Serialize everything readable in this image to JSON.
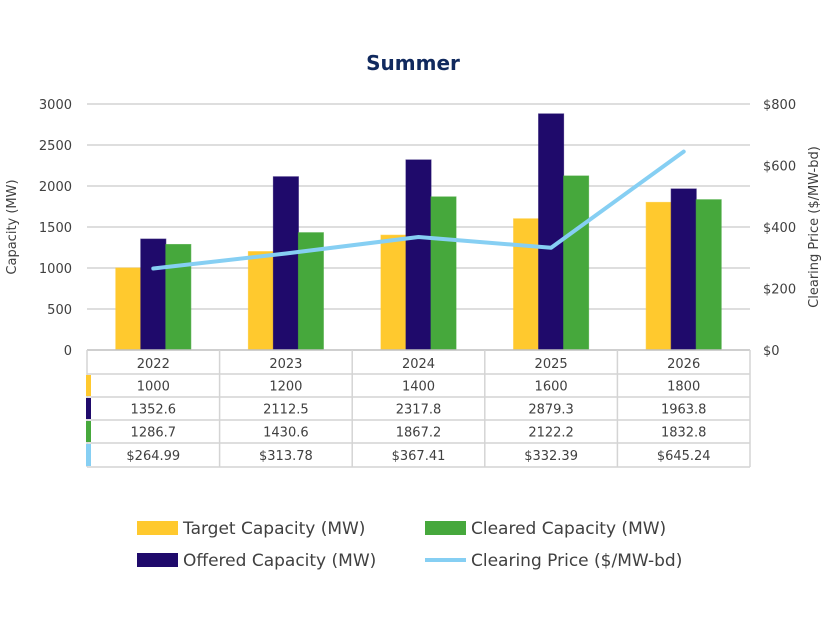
{
  "chart_data": {
    "type": "bar",
    "title": "Summer",
    "categories": [
      "2022",
      "2023",
      "2024",
      "2025",
      "2026"
    ],
    "ylabel": "Capacity (MW)",
    "y2label": "Clearing Price ($/MW-bd)",
    "ylim": [
      0,
      3000
    ],
    "y2lim": [
      0,
      800
    ],
    "yticks": [
      "0",
      "500",
      "1000",
      "1500",
      "2000",
      "2500",
      "3000"
    ],
    "y2ticks": [
      "$0",
      "$200",
      "$400",
      "$600",
      "$800"
    ],
    "grid": true,
    "legend_placement": "bottom",
    "series": [
      {
        "name": "Target Capacity (MW)",
        "kind": "bar",
        "axis": "left",
        "color": "#ffc92e",
        "values": [
          1000,
          1200,
          1400,
          1600,
          1800
        ],
        "labels": [
          "1000",
          "1200",
          "1400",
          "1600",
          "1800"
        ]
      },
      {
        "name": "Offered Capacity (MW)",
        "kind": "bar",
        "axis": "left",
        "color": "#1f0a6b",
        "values": [
          1352.6,
          2112.5,
          2317.8,
          2879.3,
          1963.8
        ],
        "labels": [
          "1352.6",
          "2112.5",
          "2317.8",
          "2879.3",
          "1963.8"
        ]
      },
      {
        "name": "Cleared Capacity (MW)",
        "kind": "bar",
        "axis": "left",
        "color": "#46a83c",
        "values": [
          1286.7,
          1430.6,
          1867.2,
          2122.2,
          1832.8
        ],
        "labels": [
          "1286.7",
          "1430.6",
          "1867.2",
          "2122.2",
          "1832.8"
        ]
      },
      {
        "name": "Clearing Price ($/MW-bd)",
        "kind": "line",
        "axis": "right",
        "color": "#86cff3",
        "values": [
          264.99,
          313.78,
          367.41,
          332.39,
          645.24
        ],
        "labels": [
          "$264.99",
          "$313.78",
          "$367.41",
          "$332.39",
          "$645.24"
        ]
      }
    ],
    "colors": {
      "title": "#10295e",
      "grid": "#d4d4d4"
    }
  }
}
